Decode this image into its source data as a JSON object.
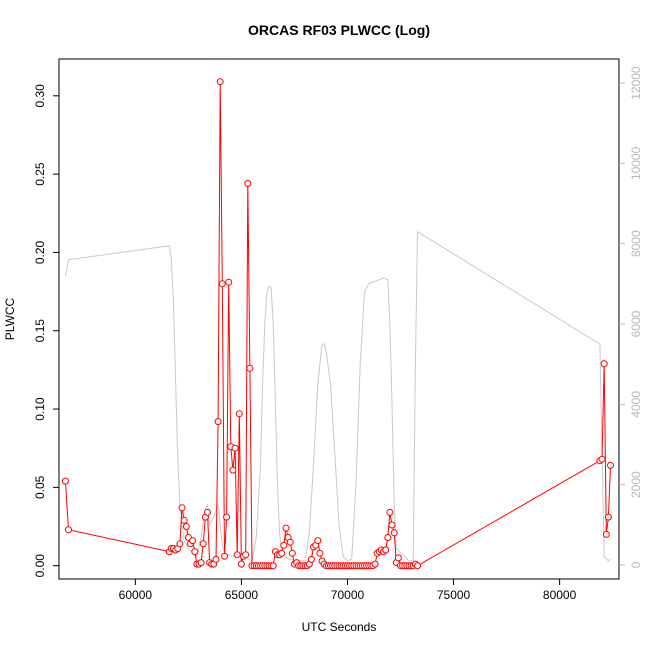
{
  "chart_data": {
    "type": "line",
    "title": "ORCAS RF03 PLWCC (Log)",
    "xlabel": "UTC Seconds",
    "ylabel": "PLWCC",
    "xlim": [
      56400,
      82800
    ],
    "ylim": [
      -0.0085,
      0.3235
    ],
    "y2lim": [
      -350,
      12600
    ],
    "x_ticks": [
      60000,
      65000,
      70000,
      75000,
      80000
    ],
    "x_tick_labels": [
      "60000",
      "65000",
      "70000",
      "75000",
      "80000"
    ],
    "y_ticks": [
      0.0,
      0.05,
      0.1,
      0.15,
      0.2,
      0.25,
      0.3
    ],
    "y_tick_labels": [
      "0.00",
      "0.05",
      "0.10",
      "0.15",
      "0.20",
      "0.25",
      "0.30"
    ],
    "y2_ticks": [
      0,
      2000,
      4000,
      6000,
      8000,
      10000,
      12000
    ],
    "y2_tick_labels": [
      "0",
      "2000",
      "4000",
      "6000",
      "8000",
      "10000",
      "12000"
    ],
    "colors": {
      "series": "#ff0000",
      "secondary": "#c8c8c8",
      "axes": "#000000",
      "right_axis": "#b8b8b8"
    },
    "series": [
      {
        "axis": "left",
        "style": "line+open-circles",
        "segments": [
          [
            [
              56700,
              0.054
            ],
            [
              56850,
              0.023
            ]
          ],
          [
            [
              56850,
              0.023
            ],
            [
              61600,
              0.009
            ]
          ],
          [
            [
              61600,
              0.009
            ],
            [
              61700,
              0.011
            ],
            [
              61800,
              0.011
            ],
            [
              61900,
              0.01
            ],
            [
              62000,
              0.011
            ],
            [
              62100,
              0.014
            ],
            [
              62200,
              0.037
            ],
            [
              62300,
              0.029
            ],
            [
              62400,
              0.025
            ],
            [
              62500,
              0.018
            ],
            [
              62600,
              0.014
            ],
            [
              62700,
              0.016
            ],
            [
              62800,
              0.009
            ],
            [
              62900,
              0.001
            ],
            [
              63000,
              0.001
            ],
            [
              63100,
              0.002
            ],
            [
              63200,
              0.014
            ],
            [
              63300,
              0.031
            ],
            [
              63400,
              0.034
            ],
            [
              63500,
              0.002
            ],
            [
              63600,
              0.001
            ],
            [
              63700,
              0.001
            ],
            [
              63800,
              0.004
            ],
            [
              63900,
              0.092
            ],
            [
              64000,
              0.309
            ],
            [
              64100,
              0.18
            ],
            [
              64200,
              0.006
            ],
            [
              64300,
              0.031
            ],
            [
              64400,
              0.181
            ],
            [
              64500,
              0.076
            ],
            [
              64600,
              0.061
            ],
            [
              64700,
              0.075
            ],
            [
              64800,
              0.007
            ],
            [
              64900,
              0.097
            ],
            [
              65000,
              0.001
            ],
            [
              65100,
              0.006
            ],
            [
              65200,
              0.007
            ],
            [
              65300,
              0.244
            ],
            [
              65400,
              0.126
            ],
            [
              65500,
              0.0
            ],
            [
              65600,
              0.0
            ],
            [
              65700,
              0.0
            ],
            [
              65800,
              0.0
            ],
            [
              65900,
              0.0
            ],
            [
              66000,
              0.0
            ],
            [
              66100,
              0.0
            ],
            [
              66200,
              0.0
            ],
            [
              66300,
              0.0
            ],
            [
              66400,
              0.0
            ],
            [
              66500,
              0.0
            ],
            [
              66600,
              0.009
            ],
            [
              66700,
              0.007
            ],
            [
              66800,
              0.007
            ],
            [
              66900,
              0.008
            ],
            [
              67000,
              0.013
            ],
            [
              67100,
              0.024
            ],
            [
              67200,
              0.018
            ],
            [
              67300,
              0.015
            ],
            [
              67400,
              0.008
            ],
            [
              67500,
              0.001
            ],
            [
              67600,
              0.002
            ],
            [
              67700,
              0.0
            ],
            [
              67800,
              0.0
            ],
            [
              67900,
              0.0
            ],
            [
              68000,
              0.0
            ],
            [
              68100,
              0.0
            ],
            [
              68200,
              0.001
            ],
            [
              68300,
              0.004
            ],
            [
              68400,
              0.012
            ],
            [
              68500,
              0.013
            ],
            [
              68600,
              0.016
            ],
            [
              68700,
              0.008
            ],
            [
              68800,
              0.003
            ],
            [
              68900,
              0.001
            ],
            [
              69000,
              0.0
            ],
            [
              69100,
              0.0
            ],
            [
              69200,
              0.0
            ],
            [
              69300,
              0.0
            ],
            [
              69400,
              0.0
            ],
            [
              69500,
              0.0
            ],
            [
              69600,
              0.0
            ],
            [
              69700,
              0.0
            ],
            [
              69800,
              0.0
            ],
            [
              69900,
              0.0
            ],
            [
              70000,
              0.0
            ],
            [
              70100,
              0.0
            ],
            [
              70200,
              0.0
            ],
            [
              70300,
              0.0
            ],
            [
              70400,
              0.0
            ],
            [
              70500,
              0.0
            ],
            [
              70600,
              0.0
            ],
            [
              70700,
              0.0
            ],
            [
              70800,
              0.0
            ],
            [
              70900,
              0.0
            ],
            [
              71000,
              0.0
            ],
            [
              71100,
              0.0
            ],
            [
              71200,
              0.0
            ],
            [
              71300,
              0.001
            ],
            [
              71400,
              0.008
            ],
            [
              71500,
              0.009
            ],
            [
              71600,
              0.01
            ],
            [
              71700,
              0.009
            ],
            [
              71800,
              0.01
            ],
            [
              71900,
              0.018
            ],
            [
              72000,
              0.034
            ],
            [
              72100,
              0.026
            ],
            [
              72200,
              0.021
            ],
            [
              72300,
              0.002
            ],
            [
              72400,
              0.005
            ],
            [
              72500,
              0.0
            ],
            [
              72600,
              0.0
            ],
            [
              72700,
              0.0
            ],
            [
              72800,
              0.0
            ],
            [
              72900,
              0.0
            ],
            [
              73000,
              0.0
            ],
            [
              73100,
              0.0
            ],
            [
              73200,
              0.001
            ],
            [
              73300,
              0.0
            ]
          ],
          [
            [
              73300,
              0.0
            ],
            [
              81900,
              0.067
            ]
          ],
          [
            [
              81900,
              0.067
            ],
            [
              82000,
              0.068
            ],
            [
              82100,
              0.129
            ],
            [
              82200,
              0.02
            ],
            [
              82300,
              0.031
            ],
            [
              82400,
              0.064
            ]
          ]
        ]
      },
      {
        "axis": "right",
        "style": "line",
        "points": [
          [
            56700,
            7200
          ],
          [
            56850,
            7600
          ],
          [
            61600,
            7950
          ],
          [
            61700,
            7600
          ],
          [
            61800,
            6500
          ],
          [
            61900,
            4500
          ],
          [
            62000,
            2600
          ],
          [
            62100,
            1500
          ],
          [
            62200,
            1000
          ],
          [
            62300,
            600
          ],
          [
            62500,
            400
          ],
          [
            62700,
            300
          ],
          [
            62900,
            200
          ],
          [
            63100,
            700
          ],
          [
            63300,
            1400
          ],
          [
            63400,
            1500
          ],
          [
            63500,
            1000
          ],
          [
            63700,
            1200
          ],
          [
            63900,
            1500
          ],
          [
            64000,
            1000
          ],
          [
            64100,
            500
          ],
          [
            64200,
            300
          ],
          [
            64400,
            250
          ],
          [
            64600,
            200
          ],
          [
            64800,
            300
          ],
          [
            65000,
            150
          ],
          [
            65200,
            200
          ],
          [
            65500,
            100
          ],
          [
            65700,
            700
          ],
          [
            65900,
            2500
          ],
          [
            66000,
            4500
          ],
          [
            66100,
            6000
          ],
          [
            66200,
            6800
          ],
          [
            66300,
            6950
          ],
          [
            66400,
            6900
          ],
          [
            66500,
            6000
          ],
          [
            66600,
            4000
          ],
          [
            66700,
            2000
          ],
          [
            66800,
            800
          ],
          [
            66900,
            300
          ],
          [
            67200,
            150
          ],
          [
            67600,
            100
          ],
          [
            68000,
            100
          ],
          [
            68200,
            800
          ],
          [
            68400,
            2500
          ],
          [
            68600,
            4500
          ],
          [
            68800,
            5500
          ],
          [
            68900,
            5500
          ],
          [
            69000,
            5300
          ],
          [
            69200,
            4500
          ],
          [
            69400,
            2800
          ],
          [
            69600,
            1000
          ],
          [
            69800,
            200
          ],
          [
            70000,
            100
          ],
          [
            70200,
            150
          ],
          [
            70400,
            2000
          ],
          [
            70600,
            5000
          ],
          [
            70800,
            6800
          ],
          [
            71000,
            7000
          ],
          [
            71200,
            7050
          ],
          [
            71500,
            7100
          ],
          [
            71700,
            7150
          ],
          [
            71900,
            7100
          ],
          [
            72000,
            6000
          ],
          [
            72100,
            4000
          ],
          [
            72200,
            1500
          ],
          [
            72300,
            400
          ],
          [
            72500,
            300
          ],
          [
            72700,
            200
          ],
          [
            72900,
            100
          ],
          [
            73100,
            100
          ],
          [
            73200,
            5000
          ],
          [
            73300,
            8300
          ],
          [
            81900,
            5500
          ],
          [
            82100,
            200
          ],
          [
            82300,
            100
          ],
          [
            82400,
            150
          ]
        ]
      }
    ]
  }
}
